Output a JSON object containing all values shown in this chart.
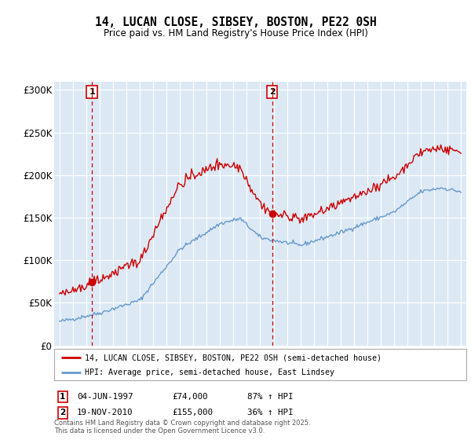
{
  "title": "14, LUCAN CLOSE, SIBSEY, BOSTON, PE22 0SH",
  "subtitle": "Price paid vs. HM Land Registry's House Price Index (HPI)",
  "background_color": "#dce9f5",
  "plot_bg_color": "#dce9f5",
  "red_line_label": "14, LUCAN CLOSE, SIBSEY, BOSTON, PE22 0SH (semi-detached house)",
  "blue_line_label": "HPI: Average price, semi-detached house, East Lindsey",
  "sale1_date": "04-JUN-1997",
  "sale1_price": 74000,
  "sale1_hpi": "87% ↑ HPI",
  "sale2_date": "19-NOV-2010",
  "sale2_price": 155000,
  "sale2_hpi": "36% ↑ HPI",
  "footnote": "Contains HM Land Registry data © Crown copyright and database right 2025.\nThis data is licensed under the Open Government Licence v3.0.",
  "ylim": [
    0,
    310000
  ],
  "yticks": [
    0,
    50000,
    100000,
    150000,
    200000,
    250000,
    300000
  ],
  "ytick_labels": [
    "£0",
    "£50K",
    "£100K",
    "£150K",
    "£200K",
    "£250K",
    "£300K"
  ],
  "sale1_year": 1997.42,
  "sale2_year": 2010.88,
  "red_color": "#cc0000",
  "blue_color": "#6699cc",
  "dashed_color": "#cc0000",
  "xlim_left": 1994.6,
  "xlim_right": 2025.4
}
